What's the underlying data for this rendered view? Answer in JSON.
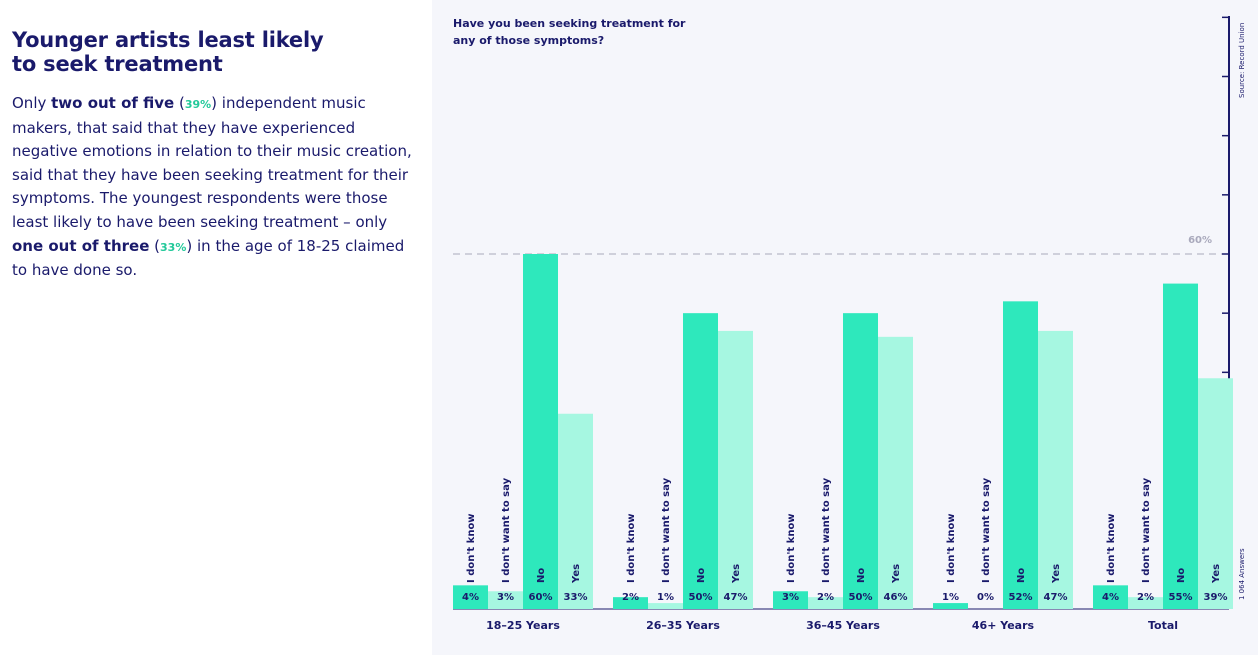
{
  "article": {
    "title_line1": "Younger artists least likely",
    "title_line2": "to seek treatment",
    "p1": "Only ",
    "b1": "two out of five",
    "p2": " (",
    "pct1": "39%",
    "p3": ") independent music makers, that said that they have experienced negative emotions in relation to their music creation, said that they have been seeking treatment for their symptoms. The youngest respondents were those least likely to have been seeking treatment – only ",
    "b2": "one out of three",
    "p4": " (",
    "pct2": "33%",
    "p5": ") in the age of 18-25 claimed to have done so."
  },
  "chart_data": {
    "type": "bar",
    "title_line1": "Have you been seeking treatment for",
    "title_line2": "any of those symptoms?",
    "source": "Source: Record Union",
    "answers_note": "1 064 Answers",
    "reference_label": "60%",
    "reference_value": 60,
    "ylim": [
      0,
      100
    ],
    "grid": false,
    "categories": [
      "18–25 Years",
      "26–35 Years",
      "36–45 Years",
      "46+ Years",
      "Total"
    ],
    "series": [
      {
        "name": "I don't know",
        "color": "#2ee8bc",
        "values": [
          4,
          2,
          3,
          1,
          4
        ]
      },
      {
        "name": "I don't want to say",
        "color": "#a6f7e1",
        "values": [
          3,
          1,
          2,
          0,
          2
        ]
      },
      {
        "name": "No",
        "color": "#2ee8bc",
        "values": [
          60,
          50,
          50,
          52,
          55
        ]
      },
      {
        "name": "Yes",
        "color": "#a6f7e1",
        "values": [
          33,
          47,
          46,
          47,
          39
        ]
      }
    ],
    "colors": {
      "text": "#1a1a6b",
      "panel": "#f5f6fb",
      "reference": "#b9b9c8"
    }
  }
}
